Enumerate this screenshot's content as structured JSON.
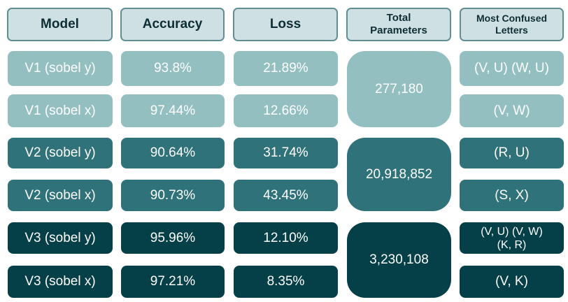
{
  "headers": [
    "Model",
    "Accuracy",
    "Loss",
    "Total Parameters",
    "Most Confused Letters"
  ],
  "header_lines": {
    "params": [
      "Total",
      "Parameters"
    ],
    "confused": [
      "Most Confused",
      "Letters"
    ]
  },
  "rows": [
    {
      "model": "V1 (sobel y)",
      "accuracy": "93.8%",
      "loss": "21.89%",
      "confused": "(V, U) (W, U)"
    },
    {
      "model": "V1 (sobel x)",
      "accuracy": "97.44%",
      "loss": "12.66%",
      "confused": "(V, W)"
    },
    {
      "model": "V2 (sobel y)",
      "accuracy": "90.64%",
      "loss": "31.74%",
      "confused": "(R, U)"
    },
    {
      "model": "V2 (sobel x)",
      "accuracy": "90.73%",
      "loss": "43.45%",
      "confused": "(S, X)"
    },
    {
      "model": "V3 (sobel y)",
      "accuracy": "95.96%",
      "loss": "12.10%",
      "confused_lines": [
        "(V, U) (V, W)",
        "(K, R)"
      ]
    },
    {
      "model": "V3 (sobel x)",
      "accuracy": "97.21%",
      "loss": "8.35%",
      "confused": "(V, K)"
    }
  ],
  "params": [
    "277,180",
    "20,918,852",
    "3,230,108"
  ],
  "colors": {
    "v1": "#93bfc1",
    "v2": "#2f7279",
    "v3": "#053f48",
    "header_bg": "#cfe0e2",
    "header_border": "#5f8f95"
  }
}
